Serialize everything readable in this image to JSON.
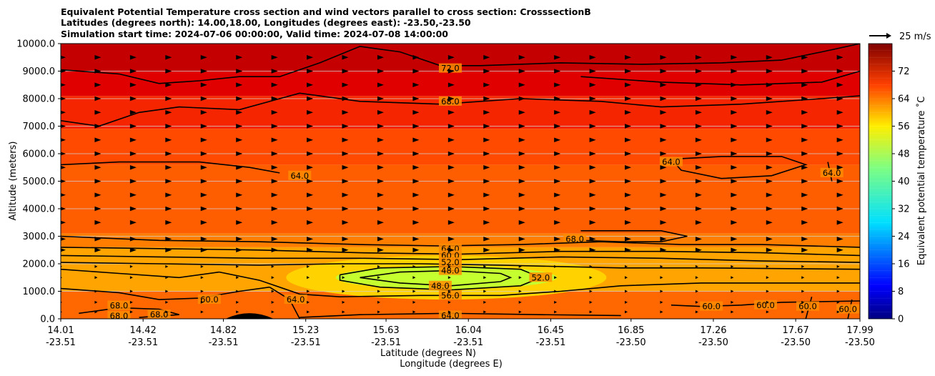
{
  "chart_data": {
    "type": "contourf",
    "title_lines": [
      "Equivalent Potential Temperature cross section and wind vectors parallel to cross section: CrosssectionB",
      "Latitudes (degrees north): 14.00,18.00, Longitudes (degrees east): -23.50,-23.50",
      "Simulation start time: 2024-07-06 00:00:00, Valid time: 2024-07-08 14:00:00"
    ],
    "ylabel": "Altitude (meters)",
    "xlabel_lat": "Latitude (degrees N)",
    "xlabel_lon": "Longitude (degrees E)",
    "ylim": [
      0,
      10000
    ],
    "y_ticks": [
      {
        "value": 0,
        "label": "0.0"
      },
      {
        "value": 1000,
        "label": "1000.0"
      },
      {
        "value": 2000,
        "label": "2000.0"
      },
      {
        "value": 3000,
        "label": "3000.0"
      },
      {
        "value": 4000,
        "label": "4000.0"
      },
      {
        "value": 5000,
        "label": "5000.0"
      },
      {
        "value": 6000,
        "label": "6000.0"
      },
      {
        "value": 7000,
        "label": "7000.0"
      },
      {
        "value": 8000,
        "label": "8000.0"
      },
      {
        "value": 9000,
        "label": "9000.0"
      },
      {
        "value": 10000,
        "label": "10000.0"
      }
    ],
    "xlim": [
      14.01,
      17.99
    ],
    "x_ticks": [
      {
        "lat": 14.01,
        "lat_label": "14.01",
        "lon_label": "-23.51"
      },
      {
        "lat": 14.42,
        "lat_label": "14.42",
        "lon_label": "-23.51"
      },
      {
        "lat": 14.82,
        "lat_label": "14.82",
        "lon_label": "-23.51"
      },
      {
        "lat": 15.23,
        "lat_label": "15.23",
        "lon_label": "-23.51"
      },
      {
        "lat": 15.63,
        "lat_label": "15.63",
        "lon_label": "-23.51"
      },
      {
        "lat": 16.04,
        "lat_label": "16.04",
        "lon_label": "-23.51"
      },
      {
        "lat": 16.45,
        "lat_label": "16.45",
        "lon_label": "-23.51"
      },
      {
        "lat": 16.85,
        "lat_label": "16.85",
        "lon_label": "-23.50"
      },
      {
        "lat": 17.26,
        "lat_label": "17.26",
        "lon_label": "-23.50"
      },
      {
        "lat": 17.67,
        "lat_label": "17.67",
        "lon_label": "-23.50"
      },
      {
        "lat": 17.99,
        "lat_label": "17.99",
        "lon_label": "-23.50"
      }
    ],
    "colorbar": {
      "label": "Equivalent potential temperature ˚C",
      "min": 0,
      "max": 80,
      "step": 2,
      "ticks": [
        {
          "value": 0,
          "label": "0"
        },
        {
          "value": 8,
          "label": "8"
        },
        {
          "value": 16,
          "label": "16"
        },
        {
          "value": 24,
          "label": "24"
        },
        {
          "value": 32,
          "label": "32"
        },
        {
          "value": 40,
          "label": "40"
        },
        {
          "value": 48,
          "label": "48"
        },
        {
          "value": 56,
          "label": "56"
        },
        {
          "value": 64,
          "label": "64"
        },
        {
          "value": 72,
          "label": "72"
        }
      ]
    },
    "quiver_key": {
      "label": "25 m/s",
      "speed": 25
    },
    "field_bands": [
      {
        "level": 76,
        "alt": [
          9000,
          10000
        ],
        "color": "#c40000"
      },
      {
        "level": 72,
        "alt": [
          8100,
          9000
        ],
        "color": "#e00000"
      },
      {
        "level": 68,
        "alt": [
          6900,
          8100
        ],
        "color": "#f52500"
      },
      {
        "level": 66,
        "alt": [
          5600,
          6900
        ],
        "color": "#ff4a00"
      },
      {
        "level": 64,
        "alt": [
          3100,
          5600
        ],
        "color": "#ff5e00"
      },
      {
        "level": 62,
        "alt": [
          2600,
          3100
        ],
        "color": "#ff7e00"
      },
      {
        "level": 60,
        "alt": [
          1000,
          2600
        ],
        "color": "#ffa400"
      },
      {
        "level": 64,
        "alt": [
          0,
          1000
        ],
        "color": "#ff6800"
      }
    ],
    "moist_core": {
      "lat_center": 15.93,
      "alt_center": 1500,
      "lat_halfwidth": 0.55,
      "alt_halfwidth": 420,
      "value": 48,
      "color": "#c6ff30"
    },
    "contours": [
      {
        "level": 72,
        "label": "72.0",
        "label_at": [
          15.95,
          9100
        ],
        "points": [
          [
            14.01,
            9050
          ],
          [
            14.3,
            8900
          ],
          [
            14.5,
            8550
          ],
          [
            14.7,
            8650
          ],
          [
            14.9,
            8800
          ],
          [
            15.1,
            8800
          ],
          [
            15.3,
            9300
          ],
          [
            15.5,
            9900
          ],
          [
            15.7,
            9700
          ],
          [
            15.9,
            9200
          ],
          [
            16.1,
            9200
          ],
          [
            16.5,
            9300
          ],
          [
            16.9,
            9250
          ],
          [
            17.3,
            9300
          ],
          [
            17.6,
            9400
          ],
          [
            17.8,
            9700
          ],
          [
            17.99,
            10000
          ]
        ]
      },
      {
        "level": 72,
        "label": "",
        "label_at": null,
        "points": [
          [
            16.6,
            8800
          ],
          [
            17.0,
            8600
          ],
          [
            17.4,
            8500
          ],
          [
            17.8,
            8600
          ],
          [
            17.99,
            9000
          ]
        ]
      },
      {
        "level": 68,
        "label": "68.0",
        "label_at": [
          15.95,
          7900
        ],
        "points": [
          [
            14.01,
            7200
          ],
          [
            14.2,
            7000
          ],
          [
            14.4,
            7500
          ],
          [
            14.6,
            7700
          ],
          [
            14.9,
            7600
          ],
          [
            15.2,
            8200
          ],
          [
            15.5,
            7900
          ],
          [
            15.9,
            7800
          ],
          [
            16.3,
            8000
          ],
          [
            16.7,
            7900
          ],
          [
            17.0,
            7700
          ],
          [
            17.4,
            7800
          ],
          [
            17.8,
            8000
          ],
          [
            17.99,
            8100
          ]
        ]
      },
      {
        "level": 64,
        "label": "64.0",
        "label_at": [
          15.2,
          5200
        ],
        "points": [
          [
            14.01,
            5600
          ],
          [
            14.3,
            5700
          ],
          [
            14.7,
            5700
          ],
          [
            14.95,
            5500
          ],
          [
            15.1,
            5300
          ]
        ]
      },
      {
        "level": 64,
        "label": "64.0",
        "label_at": [
          17.05,
          5700
        ],
        "points": [
          [
            17.05,
            5800
          ],
          [
            17.3,
            5900
          ],
          [
            17.6,
            5900
          ],
          [
            17.72,
            5600
          ],
          [
            17.55,
            5200
          ],
          [
            17.3,
            5100
          ],
          [
            17.1,
            5400
          ],
          [
            17.05,
            5800
          ]
        ]
      },
      {
        "level": 64,
        "label": "64.0",
        "label_at": [
          17.85,
          5300
        ],
        "points": [
          [
            17.83,
            5700
          ],
          [
            17.85,
            5000
          ]
        ]
      },
      {
        "level": 68,
        "label": "68.0",
        "label_at": [
          16.57,
          2900
        ],
        "points": [
          [
            16.6,
            3200
          ],
          [
            16.8,
            3200
          ],
          [
            17.0,
            3200
          ],
          [
            17.13,
            3000
          ],
          [
            17.0,
            2800
          ],
          [
            16.8,
            2800
          ],
          [
            16.6,
            2850
          ]
        ]
      },
      {
        "level": 64,
        "label": "64.0",
        "label_at": [
          15.95,
          2550
        ],
        "points": [
          [
            14.01,
            3000
          ],
          [
            14.5,
            2850
          ],
          [
            15.0,
            2800
          ],
          [
            15.5,
            2700
          ],
          [
            15.9,
            2650
          ],
          [
            16.3,
            2700
          ],
          [
            16.7,
            2800
          ],
          [
            17.1,
            2700
          ],
          [
            17.5,
            2700
          ],
          [
            17.99,
            2600
          ]
        ]
      },
      {
        "level": 62,
        "label": "",
        "label_at": null,
        "points": [
          [
            14.01,
            2600
          ],
          [
            14.5,
            2550
          ],
          [
            15.0,
            2500
          ],
          [
            15.5,
            2400
          ],
          [
            16.0,
            2350
          ],
          [
            16.5,
            2450
          ],
          [
            17.0,
            2450
          ],
          [
            17.5,
            2400
          ],
          [
            17.99,
            2300
          ]
        ]
      },
      {
        "level": 60,
        "label": "60.0",
        "label_at": [
          15.95,
          2300
        ],
        "points": [
          [
            14.01,
            2300
          ],
          [
            14.5,
            2250
          ],
          [
            15.0,
            2200
          ],
          [
            15.5,
            2200
          ],
          [
            16.0,
            2150
          ],
          [
            16.5,
            2250
          ],
          [
            17.0,
            2200
          ],
          [
            17.5,
            2100
          ],
          [
            17.99,
            2050
          ]
        ]
      },
      {
        "level": 52,
        "label": "52.0",
        "label_at": [
          15.95,
          2050
        ],
        "points": [
          [
            14.01,
            2050
          ],
          [
            14.5,
            2000
          ],
          [
            15.0,
            1950
          ],
          [
            15.4,
            2000
          ],
          [
            15.8,
            2000
          ],
          [
            16.2,
            1950
          ],
          [
            16.5,
            1900
          ],
          [
            16.8,
            1850
          ],
          [
            17.2,
            1850
          ],
          [
            17.99,
            1800
          ]
        ]
      },
      {
        "level": 52,
        "label": "52.0",
        "label_at": [
          16.4,
          1500
        ],
        "points": [
          [
            15.4,
            1600
          ],
          [
            15.6,
            1850
          ],
          [
            15.95,
            1900
          ],
          [
            16.3,
            1800
          ],
          [
            16.4,
            1500
          ],
          [
            16.3,
            1200
          ],
          [
            15.95,
            1050
          ],
          [
            15.6,
            1150
          ],
          [
            15.4,
            1400
          ],
          [
            15.4,
            1600
          ]
        ]
      },
      {
        "level": 48,
        "label": "48.0",
        "label_at": [
          15.95,
          1750
        ],
        "points": [
          [
            15.5,
            1500
          ],
          [
            15.7,
            1700
          ],
          [
            15.95,
            1750
          ],
          [
            16.2,
            1650
          ],
          [
            16.25,
            1500
          ],
          [
            16.2,
            1350
          ],
          [
            15.95,
            1200
          ],
          [
            15.7,
            1300
          ],
          [
            15.5,
            1500
          ]
        ]
      },
      {
        "level": 48,
        "label": "48.0",
        "label_at": [
          15.9,
          1200
        ],
        "points": []
      },
      {
        "level": 56,
        "label": "56.0",
        "label_at": [
          15.95,
          850
        ],
        "points": [
          [
            14.8,
            1700
          ],
          [
            15.0,
            1400
          ],
          [
            15.2,
            900
          ],
          [
            15.4,
            800
          ],
          [
            15.8,
            850
          ],
          [
            16.2,
            850
          ],
          [
            16.5,
            1000
          ],
          [
            16.8,
            1200
          ],
          [
            17.2,
            1300
          ],
          [
            17.99,
            1300
          ]
        ]
      },
      {
        "level": 56,
        "label": "",
        "label_at": null,
        "points": [
          [
            14.01,
            1800
          ],
          [
            14.3,
            1650
          ],
          [
            14.6,
            1500
          ],
          [
            14.8,
            1700
          ]
        ]
      },
      {
        "level": 60,
        "label": "60.0",
        "label_at": [
          14.75,
          700
        ],
        "points": [
          [
            14.01,
            1100
          ],
          [
            14.3,
            950
          ],
          [
            14.5,
            700
          ],
          [
            14.7,
            750
          ],
          [
            14.9,
            1000
          ],
          [
            15.05,
            1150
          ]
        ]
      },
      {
        "level": 64,
        "label": "64.0",
        "label_at": [
          15.18,
          700
        ],
        "points": [
          [
            15.05,
            1150
          ],
          [
            15.15,
            700
          ],
          [
            15.2,
            0
          ]
        ]
      },
      {
        "level": 60,
        "label": "60.0",
        "label_at": [
          17.25,
          450
        ],
        "points": [
          [
            17.05,
            500
          ],
          [
            17.2,
            450
          ],
          [
            17.4,
            500
          ],
          [
            17.6,
            600
          ],
          [
            17.99,
            650
          ]
        ]
      },
      {
        "level": 60,
        "label": "60.0",
        "label_at": [
          17.52,
          500
        ],
        "points": []
      },
      {
        "level": 60,
        "label": "60.0",
        "label_at": [
          17.73,
          450
        ],
        "points": [
          [
            17.75,
            800
          ],
          [
            17.72,
            0
          ]
        ]
      },
      {
        "level": 60,
        "label": "60.0",
        "label_at": [
          17.93,
          350
        ],
        "points": [
          [
            17.95,
            700
          ],
          [
            17.93,
            0
          ]
        ]
      },
      {
        "level": 64,
        "label": "64.0",
        "label_at": [
          15.95,
          120
        ],
        "points": [
          [
            15.2,
            50
          ],
          [
            15.5,
            150
          ],
          [
            15.95,
            200
          ],
          [
            16.4,
            150
          ],
          [
            16.8,
            120
          ]
        ]
      },
      {
        "level": 68,
        "label": "68.0",
        "label_at": [
          14.3,
          100
        ],
        "points": [
          [
            14.1,
            200
          ],
          [
            14.3,
            400
          ],
          [
            14.5,
            350
          ],
          [
            14.6,
            150
          ],
          [
            14.4,
            50
          ]
        ]
      },
      {
        "level": 68,
        "label": "68.0",
        "label_at": [
          14.5,
          150
        ],
        "points": []
      },
      {
        "level": 68,
        "label": "68.0",
        "label_at": [
          14.3,
          480
        ],
        "points": []
      }
    ],
    "terrain": {
      "lat_center": 14.95,
      "lat_halfwidth": 0.12,
      "peak": 200
    },
    "vector_grid": {
      "lat_start": 14.01,
      "lat_step": 0.176,
      "count": 23,
      "altitudes": [
        250,
        600,
        1000,
        1500,
        1900,
        2500,
        2900,
        3500,
        4000,
        4500,
        5000,
        5500,
        6000,
        6500,
        7000,
        7500,
        8000,
        8500,
        9000,
        9500
      ]
    }
  }
}
